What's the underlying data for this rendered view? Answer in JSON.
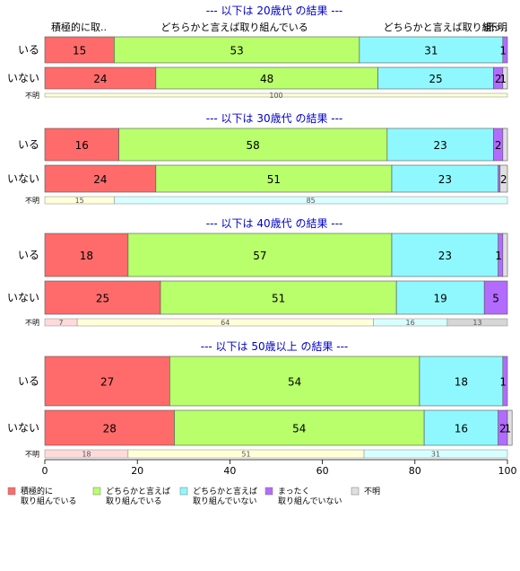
{
  "chart_data": {
    "type": "bar",
    "stacked": true,
    "orientation": "horizontal",
    "xlim": [
      0,
      100
    ],
    "x_ticks": [
      0,
      20,
      40,
      60,
      80,
      100
    ],
    "colors": {
      "cat1": "#ff6b6b",
      "cat2": "#b8ff6b",
      "cat3": "#8ff8ff",
      "cat4": "#b36bff",
      "cat5": "#e0e0e0",
      "title": "#0000cc"
    },
    "unknown_colors": [
      "#ffdada",
      "#ffffd8",
      "#d8ffff",
      "#ead8ff",
      "#d6d6d6"
    ],
    "legend": [
      {
        "key": "cat1",
        "line1": "積極的に",
        "line2": "取り組んでいる"
      },
      {
        "key": "cat2",
        "line1": "どちらかと言えば",
        "line2": "取り組んでいる"
      },
      {
        "key": "cat3",
        "line1": "どちらかと言えば",
        "line2": "取り組んでいない"
      },
      {
        "key": "cat4",
        "line1": "まったく",
        "line2": "取り組んでいない"
      },
      {
        "key": "cat5",
        "line1": "不明",
        "line2": ""
      }
    ],
    "header_labels": [
      {
        "text": "積極的に取..",
        "anchor": "start",
        "at": 0
      },
      {
        "text": "どちらかと言えば取り組んでいる",
        "anchor": "middle",
        "at": 41
      },
      {
        "text": "どちらかと言えば取り組..",
        "anchor": "end",
        "at": 98
      },
      {
        "text": "まっ..",
        "anchor": "end",
        "at": 100
      },
      {
        "text": "不明",
        "anchor": "end",
        "at": 100
      }
    ],
    "panels": [
      {
        "title": "--- 以下は 20歳代 の結果 ---",
        "rows": [
          {
            "label": "いる",
            "values": [
              15,
              53,
              31,
              1,
              0
            ],
            "labels": [
              "15",
              "53",
              "31",
              "1",
              ""
            ]
          },
          {
            "label": "いない",
            "values": [
              24,
              48,
              25,
              2,
              1
            ],
            "labels": [
              "24",
              "48",
              "25",
              "2",
              "1"
            ]
          }
        ],
        "unknown": {
          "label": "不明",
          "values": [
            0,
            100,
            0,
            0,
            0
          ],
          "labels": [
            "",
            "100",
            "",
            "",
            ""
          ]
        }
      },
      {
        "title": "--- 以下は 30歳代 の結果 ---",
        "rows": [
          {
            "label": "いる",
            "values": [
              16,
              58,
              23,
              2,
              1
            ],
            "labels": [
              "16",
              "58",
              "23",
              "2",
              ""
            ]
          },
          {
            "label": "いない",
            "values": [
              24,
              51,
              23,
              0.4,
              1.6
            ],
            "labels": [
              "24",
              "51",
              "23",
              "",
              "2"
            ]
          }
        ],
        "unknown": {
          "label": "不明",
          "values": [
            0,
            15,
            85,
            0,
            0
          ],
          "labels": [
            "",
            "15",
            "85",
            "",
            ""
          ]
        }
      },
      {
        "title": "--- 以下は 40歳代 の結果 ---",
        "rows": [
          {
            "label": "いる",
            "values": [
              18,
              57,
              23,
              1,
              1
            ],
            "labels": [
              "18",
              "57",
              "23",
              "1",
              ""
            ]
          },
          {
            "label": "いない",
            "values": [
              25,
              51,
              19,
              5,
              0
            ],
            "labels": [
              "25",
              "51",
              "19",
              "5",
              ""
            ]
          }
        ],
        "unknown": {
          "label": "不明",
          "values": [
            7,
            64,
            16,
            0,
            13
          ],
          "labels": [
            "7",
            "64",
            "16",
            "",
            "13"
          ]
        }
      },
      {
        "title": "--- 以下は 50歳以上 の結果 ---",
        "rows": [
          {
            "label": "いる",
            "values": [
              27,
              54,
              18,
              1,
              0
            ],
            "labels": [
              "27",
              "54",
              "18",
              "1",
              ""
            ]
          },
          {
            "label": "いない",
            "values": [
              28,
              54,
              16,
              2,
              1
            ],
            "labels": [
              "28",
              "54",
              "16",
              "2",
              "1"
            ]
          }
        ],
        "unknown": {
          "label": "不明",
          "values": [
            18,
            51,
            31,
            0,
            0
          ],
          "labels": [
            "18",
            "51",
            "31",
            "",
            ""
          ]
        }
      }
    ]
  }
}
